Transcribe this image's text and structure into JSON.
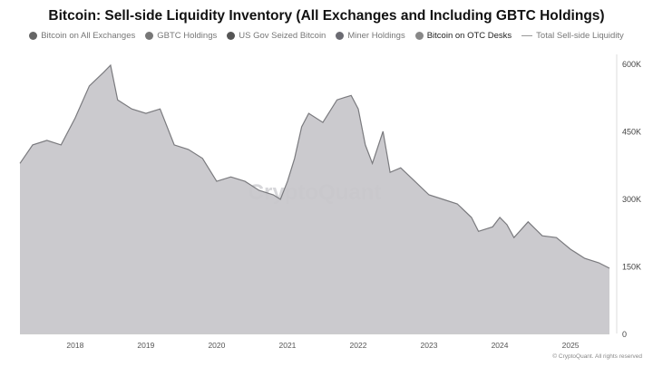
{
  "chart_data": {
    "type": "area",
    "title": "Bitcoin: Sell-side Liquidity Inventory (All Exchanges and Including GBTC Holdings)",
    "legend": [
      {
        "name": "Bitcoin on All Exchanges",
        "color": "#666666",
        "marker": "dot"
      },
      {
        "name": "GBTC Holdings",
        "color": "#777777",
        "marker": "dot"
      },
      {
        "name": "US Gov Seized Bitcoin",
        "color": "#555555",
        "marker": "dot"
      },
      {
        "name": "Miner Holdings",
        "color": "#6b6b72",
        "marker": "dot"
      },
      {
        "name": "Bitcoin on OTC Desks",
        "color": "#888888",
        "marker": "dot",
        "highlighted": true
      },
      {
        "name": "Total Sell-side Liquidity",
        "color": "#999999",
        "marker": "line"
      }
    ],
    "legend_placement": "top",
    "x_ticks": [
      "2018",
      "2019",
      "2020",
      "2021",
      "2022",
      "2023",
      "2024",
      "2025"
    ],
    "y_ticks": [
      "0",
      "150K",
      "300K",
      "450K",
      "600K"
    ],
    "ylim": [
      0,
      600000
    ],
    "xlim": [
      2017.22,
      2025.55
    ],
    "y_axis_side": "right",
    "grid": false,
    "fill_color": "#c8c7cb",
    "stroke_color": "#7a7a7e",
    "series": [
      {
        "x": [
          2017.22,
          2017.4,
          2017.6,
          2017.8,
          2018.0,
          2018.2,
          2018.4,
          2018.5,
          2018.6,
          2018.8,
          2019.0,
          2019.2,
          2019.4,
          2019.6,
          2019.8,
          2020.0,
          2020.2,
          2020.4,
          2020.6,
          2020.8,
          2020.9,
          2021.0,
          2021.1,
          2021.2,
          2021.3,
          2021.5,
          2021.7,
          2021.9,
          2022.0,
          2022.1,
          2022.2,
          2022.35,
          2022.45,
          2022.6,
          2022.8,
          2023.0,
          2023.2,
          2023.4,
          2023.6,
          2023.7,
          2023.9,
          2024.0,
          2024.1,
          2024.2,
          2024.4,
          2024.6,
          2024.8,
          2025.0,
          2025.2,
          2025.4,
          2025.55
        ],
        "values": [
          378000,
          419000,
          429000,
          419000,
          479000,
          550000,
          580000,
          596000,
          519000,
          499000,
          489000,
          499000,
          419000,
          409000,
          389000,
          338000,
          348000,
          338000,
          318000,
          308000,
          298000,
          338000,
          389000,
          459000,
          489000,
          469000,
          519000,
          529000,
          499000,
          419000,
          378000,
          449000,
          358000,
          368000,
          338000,
          308000,
          298000,
          288000,
          258000,
          227000,
          237000,
          258000,
          242000,
          213000,
          248000,
          217000,
          213000,
          187000,
          167000,
          157000,
          145000
        ]
      }
    ]
  },
  "watermark": "CryptoQuant",
  "footer": {
    "copyright": "© CryptoQuant. All rights reserved"
  }
}
